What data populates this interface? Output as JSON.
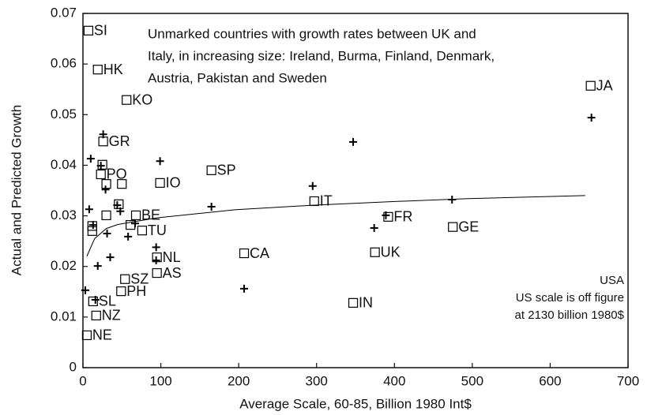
{
  "chart_data": {
    "type": "scatter",
    "xlabel": "Average Scale, 60-85, Billion 1980 Int$",
    "ylabel": "Actual and Predicted Growth",
    "annotation_top": [
      "Unmarked countries with growth rates between UK and",
      "Italy, in increasing size: Ireland, Burma, Finland, Denmark,",
      "Austria, Pakistan and Sweden"
    ],
    "annotation_right": [
      "USA",
      "US scale is off figure",
      "at  2130 billion 1980$"
    ],
    "xlim": [
      0,
      700
    ],
    "xticks": [
      0,
      100,
      200,
      300,
      400,
      500,
      600,
      700
    ],
    "ylim": [
      0,
      0.07
    ],
    "yticks": [
      0,
      0.01,
      0.02,
      0.03,
      0.04,
      0.05,
      0.06,
      0.07
    ],
    "color": "#000000",
    "series": [
      {
        "marker": "square",
        "labels": [
          "SI",
          "HK",
          "KO",
          "GR",
          "PO",
          "IO",
          "SP",
          "IT",
          "JA",
          "FR",
          "GE",
          "BE",
          "TU",
          "CA",
          "UK",
          "NL",
          "AS",
          "SZ",
          "PH",
          "SL",
          "NZ",
          "NE",
          "IN",
          null,
          null,
          null,
          null,
          null,
          null,
          null,
          null
        ],
        "x": [
          7,
          19,
          56,
          26,
          23,
          99,
          165,
          297,
          652,
          392,
          475,
          68,
          76,
          207,
          375,
          95,
          95,
          54,
          49,
          13,
          17,
          5,
          347,
          12,
          12,
          30,
          50,
          30,
          46,
          61,
          25
        ],
        "values": [
          0.0666,
          0.0589,
          0.0529,
          0.0447,
          0.0382,
          0.0365,
          0.039,
          0.0329,
          0.0557,
          0.0298,
          0.0278,
          0.0301,
          0.0271,
          0.0226,
          0.0228,
          0.0218,
          0.0187,
          0.0175,
          0.0151,
          0.0131,
          0.0103,
          0.0064,
          0.0128,
          0.028,
          0.027,
          0.0363,
          0.0363,
          0.0301,
          0.0323,
          0.0282,
          0.0401
        ]
      },
      {
        "marker": "plus",
        "x": [
          3,
          10,
          8,
          13,
          19,
          16,
          26,
          23,
          29,
          31,
          35,
          44,
          48,
          58,
          67,
          94,
          99,
          94,
          165,
          207,
          295,
          347,
          374,
          389,
          474,
          653
        ],
        "values": [
          0.0153,
          0.0413,
          0.0313,
          0.0282,
          0.0201,
          0.0134,
          0.0461,
          0.0399,
          0.0352,
          0.0265,
          0.0218,
          0.0321,
          0.0309,
          0.0259,
          0.0285,
          0.0238,
          0.0408,
          0.0212,
          0.0318,
          0.0156,
          0.0359,
          0.0446,
          0.0276,
          0.0301,
          0.0332,
          0.0494
        ]
      },
      {
        "marker": "line",
        "x": [
          5,
          15,
          30,
          45,
          95,
          195,
          295,
          395,
          495,
          645
        ],
        "values": [
          0.022,
          0.0255,
          0.0275,
          0.0283,
          0.0296,
          0.0312,
          0.0321,
          0.0328,
          0.0334,
          0.034
        ]
      }
    ]
  }
}
